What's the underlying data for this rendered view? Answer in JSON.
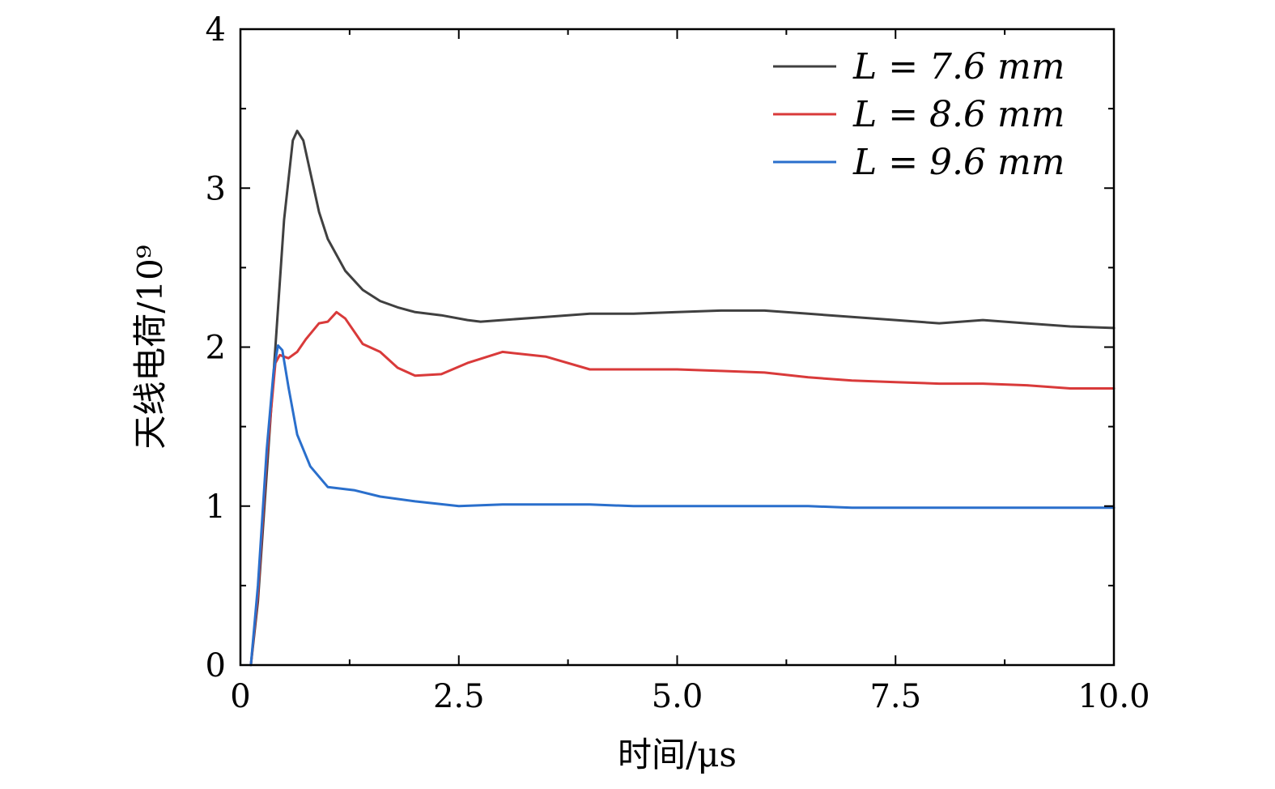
{
  "chart_data": {
    "type": "line",
    "title": "",
    "xlabel": "时间/μs",
    "ylabel": "天线电荷/10⁹",
    "xlim": [
      0,
      10
    ],
    "ylim": [
      0,
      4
    ],
    "x_ticks": [
      "0",
      "2.5",
      "5.0",
      "7.5",
      "10.0"
    ],
    "y_ticks": [
      "0",
      "1",
      "2",
      "3",
      "4"
    ],
    "grid": false,
    "legend_position": "top-right",
    "series": [
      {
        "name": "L = 7.6 mm",
        "color": "#404040",
        "points": [
          [
            0.12,
            0.0
          ],
          [
            0.2,
            0.4
          ],
          [
            0.3,
            1.2
          ],
          [
            0.4,
            2.0
          ],
          [
            0.5,
            2.8
          ],
          [
            0.6,
            3.3
          ],
          [
            0.65,
            3.36
          ],
          [
            0.72,
            3.3
          ],
          [
            0.8,
            3.1
          ],
          [
            0.9,
            2.85
          ],
          [
            1.0,
            2.68
          ],
          [
            1.2,
            2.48
          ],
          [
            1.4,
            2.36
          ],
          [
            1.6,
            2.29
          ],
          [
            1.8,
            2.25
          ],
          [
            2.0,
            2.22
          ],
          [
            2.3,
            2.2
          ],
          [
            2.6,
            2.17
          ],
          [
            2.75,
            2.16
          ],
          [
            3.0,
            2.17
          ],
          [
            3.5,
            2.19
          ],
          [
            4.0,
            2.21
          ],
          [
            4.5,
            2.21
          ],
          [
            5.0,
            2.22
          ],
          [
            5.5,
            2.23
          ],
          [
            6.0,
            2.23
          ],
          [
            6.5,
            2.21
          ],
          [
            7.0,
            2.19
          ],
          [
            7.5,
            2.17
          ],
          [
            8.0,
            2.15
          ],
          [
            8.5,
            2.17
          ],
          [
            9.0,
            2.15
          ],
          [
            9.5,
            2.13
          ],
          [
            10.0,
            2.12
          ]
        ]
      },
      {
        "name": "L = 8.6 mm",
        "color": "#d93a3a",
        "points": [
          [
            0.12,
            0.0
          ],
          [
            0.2,
            0.45
          ],
          [
            0.3,
            1.3
          ],
          [
            0.4,
            1.9
          ],
          [
            0.45,
            1.95
          ],
          [
            0.55,
            1.93
          ],
          [
            0.65,
            1.97
          ],
          [
            0.75,
            2.05
          ],
          [
            0.9,
            2.15
          ],
          [
            1.0,
            2.16
          ],
          [
            1.1,
            2.22
          ],
          [
            1.2,
            2.18
          ],
          [
            1.4,
            2.02
          ],
          [
            1.6,
            1.97
          ],
          [
            1.8,
            1.87
          ],
          [
            2.0,
            1.82
          ],
          [
            2.3,
            1.83
          ],
          [
            2.6,
            1.9
          ],
          [
            3.0,
            1.97
          ],
          [
            3.5,
            1.94
          ],
          [
            4.0,
            1.86
          ],
          [
            4.5,
            1.86
          ],
          [
            5.0,
            1.86
          ],
          [
            5.5,
            1.85
          ],
          [
            6.0,
            1.84
          ],
          [
            6.5,
            1.81
          ],
          [
            7.0,
            1.79
          ],
          [
            7.5,
            1.78
          ],
          [
            8.0,
            1.77
          ],
          [
            8.5,
            1.77
          ],
          [
            9.0,
            1.76
          ],
          [
            9.5,
            1.74
          ],
          [
            10.0,
            1.74
          ]
        ]
      },
      {
        "name": "L = 9.6 mm",
        "color": "#2a6fcc",
        "points": [
          [
            0.12,
            0.0
          ],
          [
            0.2,
            0.5
          ],
          [
            0.3,
            1.35
          ],
          [
            0.38,
            1.85
          ],
          [
            0.43,
            2.01
          ],
          [
            0.48,
            1.98
          ],
          [
            0.55,
            1.75
          ],
          [
            0.65,
            1.45
          ],
          [
            0.8,
            1.25
          ],
          [
            1.0,
            1.12
          ],
          [
            1.3,
            1.1
          ],
          [
            1.6,
            1.06
          ],
          [
            2.0,
            1.03
          ],
          [
            2.5,
            1.0
          ],
          [
            3.0,
            1.01
          ],
          [
            3.5,
            1.01
          ],
          [
            4.0,
            1.01
          ],
          [
            4.5,
            1.0
          ],
          [
            5.0,
            1.0
          ],
          [
            5.5,
            1.0
          ],
          [
            6.0,
            1.0
          ],
          [
            6.5,
            1.0
          ],
          [
            7.0,
            0.99
          ],
          [
            7.5,
            0.99
          ],
          [
            8.0,
            0.99
          ],
          [
            8.5,
            0.99
          ],
          [
            9.0,
            0.99
          ],
          [
            9.5,
            0.99
          ],
          [
            10.0,
            0.99
          ]
        ]
      }
    ]
  }
}
